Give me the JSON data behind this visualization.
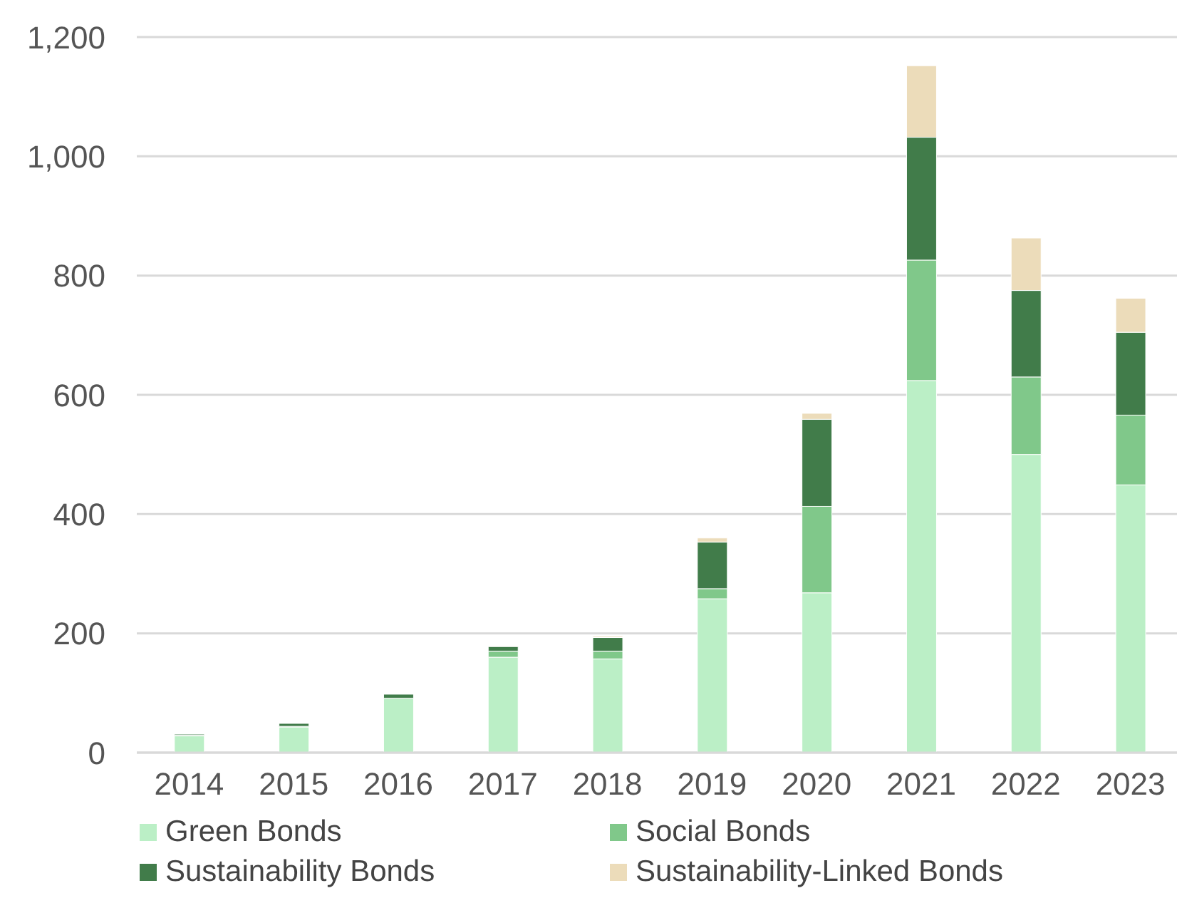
{
  "chart_data": {
    "type": "bar",
    "stacked": true,
    "categories": [
      "2014",
      "2015",
      "2016",
      "2017",
      "2018",
      "2019",
      "2020",
      "2021",
      "2022",
      "2023"
    ],
    "series": [
      {
        "name": "Green Bonds",
        "color": "#bbefc6",
        "values": [
          28,
          43,
          91,
          160,
          157,
          258,
          268,
          624,
          500,
          449
        ]
      },
      {
        "name": "Social Bonds",
        "color": "#80c88a",
        "values": [
          1,
          1,
          0,
          10,
          13,
          17,
          145,
          202,
          130,
          117
        ]
      },
      {
        "name": "Sustainability Bonds",
        "color": "#417c4a",
        "values": [
          2,
          5,
          7,
          8,
          23,
          78,
          146,
          206,
          145,
          139
        ]
      },
      {
        "name": "Sustainability-Linked Bonds",
        "color": "#ecdcba",
        "values": [
          0,
          0,
          0,
          1,
          2,
          7,
          10,
          120,
          88,
          57
        ]
      }
    ],
    "ylim": [
      0,
      1200
    ],
    "yticks": [
      0,
      {
        "value": 200,
        "label": "200"
      },
      {
        "value": 400,
        "label": "400"
      },
      {
        "value": 600,
        "label": "600"
      },
      {
        "value": 800,
        "label": "800"
      },
      {
        "value": 1000,
        "label": "1,000"
      },
      {
        "value": 1200,
        "label": "1,200"
      }
    ],
    "grid": "y",
    "legend": "bottom"
  }
}
